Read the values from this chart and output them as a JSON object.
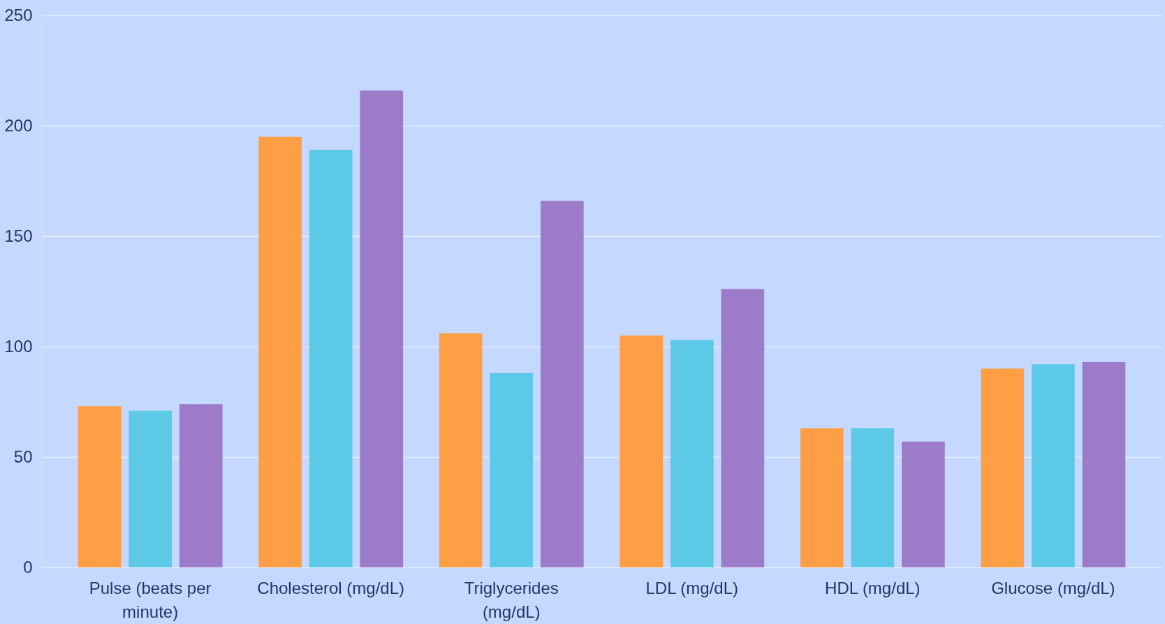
{
  "chart_data": {
    "type": "bar",
    "categories": [
      "Pulse (beats per minute)",
      "Cholesterol (mg/dL)",
      "Triglycerides (mg/dL)",
      "LDL (mg/dL)",
      "HDL (mg/dL)",
      "Glucose (mg/dL)"
    ],
    "series": [
      {
        "color": "#ff9f45",
        "values": [
          73,
          195,
          106,
          105,
          63,
          90
        ]
      },
      {
        "color": "#5cc9e6",
        "values": [
          71,
          189,
          88,
          103,
          63,
          92
        ]
      },
      {
        "color": "#9c7cc9",
        "values": [
          74,
          216,
          166,
          126,
          57,
          93
        ]
      }
    ],
    "ylim": [
      0,
      250
    ],
    "yticks": [
      0,
      50,
      100,
      150,
      200,
      250
    ],
    "grid": "y",
    "legend": false
  }
}
